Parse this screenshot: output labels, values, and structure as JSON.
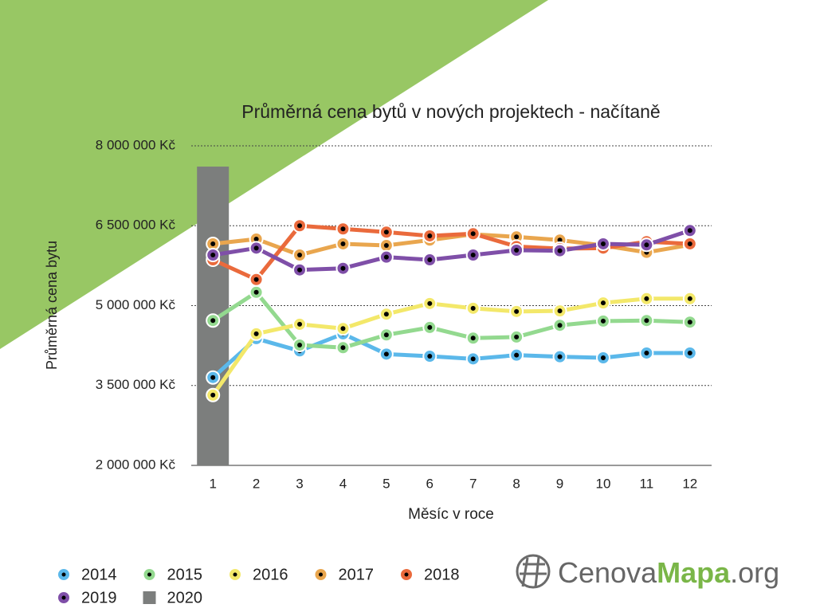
{
  "chart_data": {
    "type": "line",
    "title": "Průměrná cena bytů v nových projektech - načítaně",
    "xlabel": "Měsíc v roce",
    "ylabel": "Průměrná cena bytu",
    "categories": [
      "1",
      "2",
      "3",
      "4",
      "5",
      "6",
      "7",
      "8",
      "9",
      "10",
      "11",
      "12"
    ],
    "ylim": [
      2000000,
      8000000
    ],
    "yticks": [
      {
        "value": 2000000,
        "label": "2 000 000 Kč"
      },
      {
        "value": 3500000,
        "label": "3 500 000 Kč"
      },
      {
        "value": 5000000,
        "label": "5 000 000 Kč"
      },
      {
        "value": 6500000,
        "label": "6 500 000 Kč"
      },
      {
        "value": 8000000,
        "label": "8 000 000 Kč"
      }
    ],
    "grid": true,
    "legend": "bottom",
    "series": [
      {
        "name": "2014",
        "color": "#5bb8ea",
        "values": [
          3650000,
          4380000,
          4150000,
          4470000,
          4090000,
          4050000,
          4000000,
          4070000,
          4040000,
          4020000,
          4110000,
          4110000
        ]
      },
      {
        "name": "2015",
        "color": "#93d98f",
        "values": [
          4720000,
          5250000,
          4260000,
          4210000,
          4450000,
          4590000,
          4390000,
          4410000,
          4630000,
          4710000,
          4720000,
          4690000
        ]
      },
      {
        "name": "2016",
        "color": "#f3e86a",
        "values": [
          3320000,
          4470000,
          4650000,
          4570000,
          4840000,
          5040000,
          4950000,
          4890000,
          4900000,
          5050000,
          5130000,
          5130000
        ]
      },
      {
        "name": "2017",
        "color": "#e9a64e",
        "values": [
          6160000,
          6250000,
          5950000,
          6160000,
          6130000,
          6230000,
          6340000,
          6290000,
          6230000,
          6130000,
          6000000,
          6140000
        ]
      },
      {
        "name": "2018",
        "color": "#ea6a3c",
        "values": [
          5860000,
          5490000,
          6500000,
          6440000,
          6380000,
          6310000,
          6350000,
          6110000,
          6070000,
          6080000,
          6200000,
          6160000
        ]
      },
      {
        "name": "2019",
        "color": "#7f4fa8",
        "values": [
          5950000,
          6080000,
          5670000,
          5700000,
          5910000,
          5860000,
          5950000,
          6040000,
          6030000,
          6160000,
          6140000,
          6410000
        ]
      },
      {
        "name": "2020",
        "color": "#7c7e7d",
        "type": "bar",
        "values": [
          7610000,
          null,
          null,
          null,
          null,
          null,
          null,
          null,
          null,
          null,
          null,
          null
        ]
      }
    ]
  },
  "logo": {
    "part1": "Cenova",
    "part2": "Mapa",
    "part3": ".org"
  }
}
